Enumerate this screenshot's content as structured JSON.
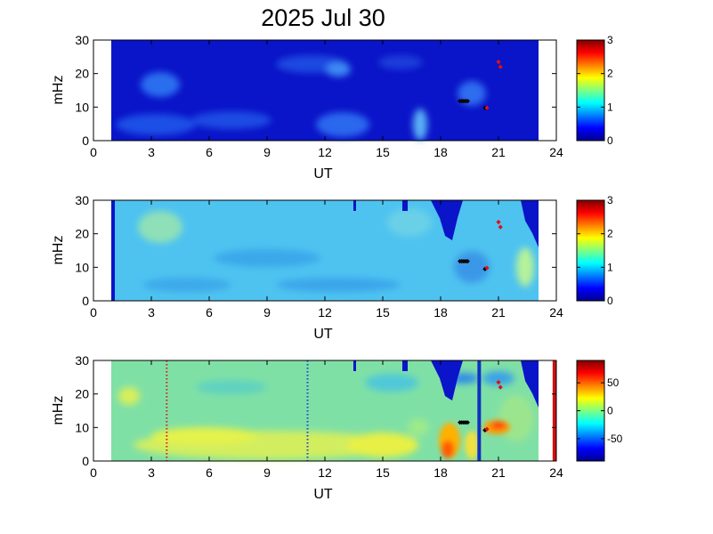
{
  "chart_data": {
    "title": "2025 Jul 30",
    "type": "heatmap",
    "panels": [
      {
        "xlabel": "UT",
        "ylabel": "mHz",
        "xlim": [
          0,
          24
        ],
        "ylim": [
          0,
          30
        ],
        "xticks": [
          0,
          3,
          6,
          9,
          12,
          15,
          18,
          21,
          24
        ],
        "yticks": [
          0,
          10,
          20,
          30
        ],
        "data_x_range": [
          1,
          23
        ],
        "colorbar": {
          "range": [
            0,
            3
          ],
          "ticks": [
            0,
            1,
            2,
            3
          ]
        },
        "black_markers": [
          {
            "x": 19.0,
            "y": 11.8
          },
          {
            "x": 19.1,
            "y": 11.8
          },
          {
            "x": 19.2,
            "y": 11.8
          },
          {
            "x": 19.3,
            "y": 11.8
          },
          {
            "x": 19.4,
            "y": 11.8
          },
          {
            "x": 20.3,
            "y": 9.8
          }
        ],
        "red_markers": [
          {
            "x": 21.0,
            "y": 23.5
          },
          {
            "x": 21.1,
            "y": 22.0
          },
          {
            "x": 20.4,
            "y": 9.8
          }
        ]
      },
      {
        "xlabel": "UT",
        "ylabel": "mHz",
        "xlim": [
          0,
          24
        ],
        "ylim": [
          0,
          30
        ],
        "xticks": [
          0,
          3,
          6,
          9,
          12,
          15,
          18,
          21,
          24
        ],
        "yticks": [
          0,
          10,
          20,
          30
        ],
        "data_x_range": [
          1,
          23
        ],
        "colorbar": {
          "range": [
            0,
            3
          ],
          "ticks": [
            0,
            1,
            2,
            3
          ]
        },
        "black_markers": [
          {
            "x": 19.0,
            "y": 11.8
          },
          {
            "x": 19.1,
            "y": 11.8
          },
          {
            "x": 19.2,
            "y": 11.8
          },
          {
            "x": 19.3,
            "y": 11.8
          },
          {
            "x": 19.4,
            "y": 11.8
          },
          {
            "x": 20.3,
            "y": 9.5
          }
        ],
        "red_markers": [
          {
            "x": 21.0,
            "y": 23.5
          },
          {
            "x": 21.1,
            "y": 22.0
          },
          {
            "x": 20.4,
            "y": 9.8
          }
        ]
      },
      {
        "xlabel": "UT",
        "ylabel": "mHz",
        "xlim": [
          0,
          24
        ],
        "ylim": [
          0,
          30
        ],
        "xticks": [
          0,
          3,
          6,
          9,
          12,
          15,
          18,
          21,
          24
        ],
        "yticks": [
          0,
          10,
          20,
          30
        ],
        "data_x_range": [
          1,
          23
        ],
        "colorbar": {
          "range": [
            -90,
            90
          ],
          "ticks": [
            50,
            0,
            -50
          ]
        },
        "dotted_lines": [
          {
            "x": 3.8,
            "color": "#d62020"
          },
          {
            "x": 11.1,
            "color": "#2040d0"
          }
        ],
        "vertical_lines": [
          {
            "x": 20.0,
            "color": "#1030c0"
          },
          {
            "x": 23.9,
            "color": "#d01010"
          }
        ],
        "black_markers": [
          {
            "x": 19.0,
            "y": 11.5
          },
          {
            "x": 19.1,
            "y": 11.5
          },
          {
            "x": 19.2,
            "y": 11.5
          },
          {
            "x": 19.3,
            "y": 11.5
          },
          {
            "x": 19.4,
            "y": 11.5
          },
          {
            "x": 20.3,
            "y": 9.2
          }
        ],
        "red_markers": [
          {
            "x": 21.0,
            "y": 23.5
          },
          {
            "x": 21.1,
            "y": 22.0
          },
          {
            "x": 20.4,
            "y": 9.5
          }
        ]
      }
    ]
  }
}
